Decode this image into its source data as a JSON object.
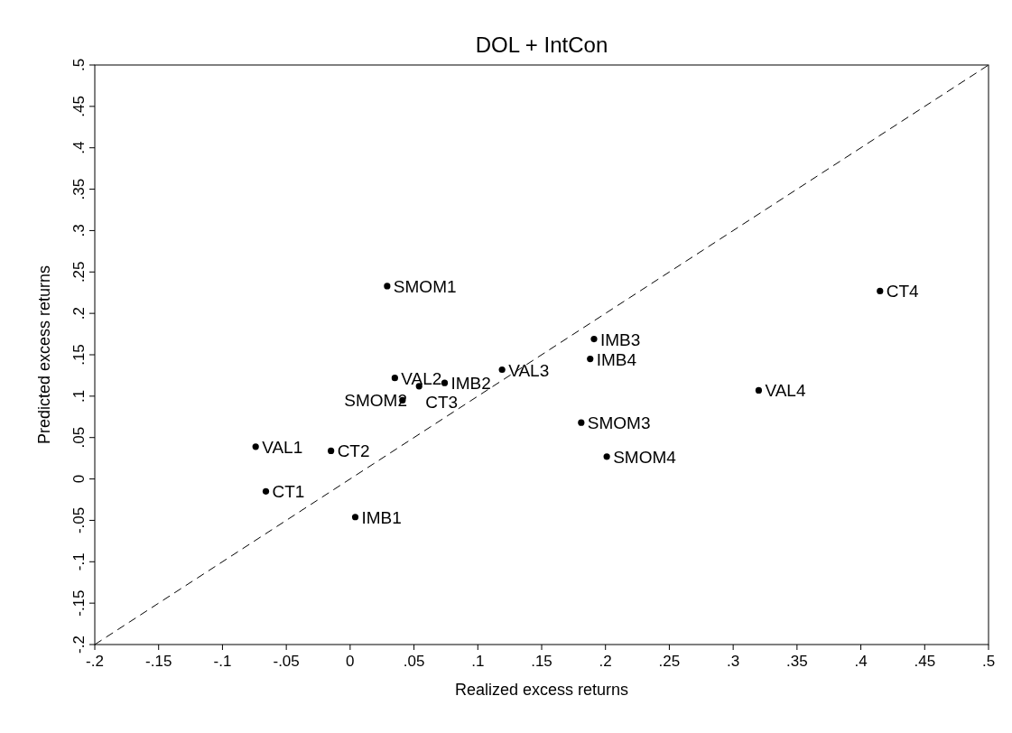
{
  "chart_data": {
    "type": "scatter",
    "title": "DOL + IntCon",
    "xlabel": "Realized excess returns",
    "ylabel": "Predicted excess returns",
    "xlim": [
      -0.2,
      0.5
    ],
    "ylim": [
      -0.2,
      0.5
    ],
    "xticks": [
      {
        "value": -0.2,
        "label": "-.2"
      },
      {
        "value": -0.15,
        "label": "-.15"
      },
      {
        "value": -0.1,
        "label": "-.1"
      },
      {
        "value": -0.05,
        "label": "-.05"
      },
      0,
      {
        "value": 0.05,
        "label": ".05"
      },
      {
        "value": 0.1,
        "label": ".1"
      },
      {
        "value": 0.15,
        "label": ".15"
      },
      {
        "value": 0.2,
        "label": ".2"
      },
      {
        "value": 0.25,
        "label": ".25"
      },
      {
        "value": 0.3,
        "label": ".3"
      },
      {
        "value": 0.35,
        "label": ".35"
      },
      {
        "value": 0.4,
        "label": ".4"
      },
      {
        "value": 0.45,
        "label": ".45"
      },
      {
        "value": 0.5,
        "label": ".5"
      }
    ],
    "yticks": [
      {
        "value": -0.2,
        "label": "-.2"
      },
      {
        "value": -0.15,
        "label": "-.15"
      },
      {
        "value": -0.1,
        "label": "-.1"
      },
      {
        "value": -0.05,
        "label": "-.05"
      },
      0,
      {
        "value": 0.05,
        "label": ".05"
      },
      {
        "value": 0.1,
        "label": ".1"
      },
      {
        "value": 0.15,
        "label": ".15"
      },
      {
        "value": 0.2,
        "label": ".2"
      },
      {
        "value": 0.25,
        "label": ".25"
      },
      {
        "value": 0.3,
        "label": ".3"
      },
      {
        "value": 0.35,
        "label": ".35"
      },
      {
        "value": 0.4,
        "label": ".4"
      },
      {
        "value": 0.45,
        "label": ".45"
      },
      {
        "value": 0.5,
        "label": ".5"
      }
    ],
    "grid": false,
    "series": [
      {
        "color": "#000000",
        "marker": "circle",
        "x": [
          0.029,
          0.415,
          0.191,
          0.188,
          0.119,
          0.035,
          0.054,
          0.074,
          0.041,
          0.32,
          0.181,
          0.201,
          -0.074,
          -0.015,
          -0.066,
          0.004
        ],
        "values": [
          0.233,
          0.227,
          0.169,
          0.145,
          0.132,
          0.122,
          0.112,
          0.116,
          0.095,
          0.107,
          0.068,
          0.027,
          0.039,
          0.034,
          -0.015,
          -0.046
        ]
      },
      {
        "type": "line",
        "color": "#000000",
        "line_style": "dashed",
        "marker": "none",
        "x": [
          -0.2,
          0.5
        ],
        "values": [
          -0.2,
          0.5
        ]
      }
    ],
    "annotations": [
      {
        "text": "SMOM1",
        "x": 0.029,
        "y": 0.233
      },
      {
        "text": "CT4",
        "x": 0.415,
        "y": 0.227
      },
      {
        "text": "IMB3",
        "x": 0.191,
        "y": 0.169
      },
      {
        "text": "IMB4",
        "x": 0.188,
        "y": 0.145
      },
      {
        "text": "VAL3",
        "x": 0.119,
        "y": 0.132
      },
      {
        "text": "VAL2",
        "x": 0.035,
        "y": 0.122
      },
      {
        "text": "CT3",
        "x": 0.054,
        "y": 0.112
      },
      {
        "text": "IMB2",
        "x": 0.074,
        "y": 0.116
      },
      {
        "text": "SMOM2",
        "x": 0.041,
        "y": 0.095
      },
      {
        "text": "VAL4",
        "x": 0.32,
        "y": 0.107
      },
      {
        "text": "SMOM3",
        "x": 0.181,
        "y": 0.068
      },
      {
        "text": "SMOM4",
        "x": 0.201,
        "y": 0.027
      },
      {
        "text": "VAL1",
        "x": -0.074,
        "y": 0.039
      },
      {
        "text": "CT2",
        "x": -0.015,
        "y": 0.034
      },
      {
        "text": "CT1",
        "x": -0.066,
        "y": -0.015
      },
      {
        "text": "IMB1",
        "x": 0.004,
        "y": -0.046
      }
    ]
  }
}
